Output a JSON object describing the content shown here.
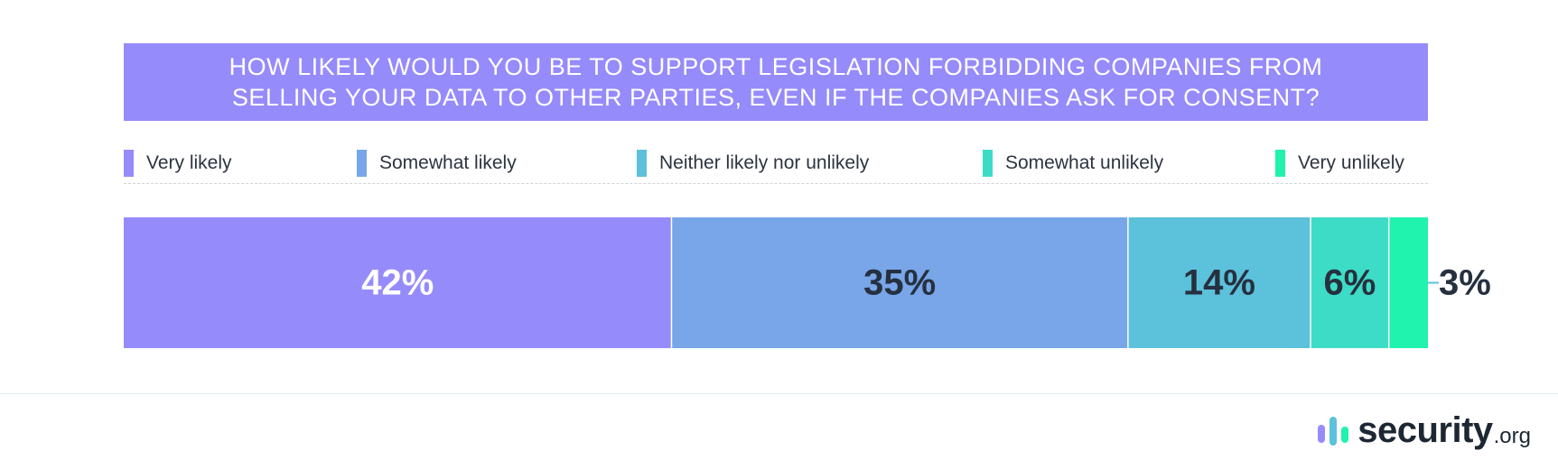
{
  "chart_data": {
    "type": "bar",
    "orientation": "horizontal-stacked",
    "title": "HOW LIKELY WOULD YOU BE TO SUPPORT LEGISLATION FORBIDDING COMPANIES FROM\nSELLING YOUR DATA TO OTHER PARTIES, EVEN IF THE COMPANIES ASK FOR CONSENT?",
    "legend_placement": "top",
    "grid": false,
    "series": [
      {
        "name": "Very likely",
        "value": 42,
        "label": "42%",
        "color": "#968bfb",
        "label_color": "#ffffff"
      },
      {
        "name": "Somewhat likely",
        "value": 35,
        "label": "35%",
        "color": "#78a6e9",
        "label_color": "#26303f"
      },
      {
        "name": "Neither likely nor unlikely",
        "value": 14,
        "label": "14%",
        "color": "#5cc1da",
        "label_color": "#26303f"
      },
      {
        "name": "Somewhat unlikely",
        "value": 6,
        "label": "6%",
        "color": "#3ddcc6",
        "label_color": "#26303f"
      },
      {
        "name": "Very unlikely",
        "value": 3,
        "label": "3%",
        "color": "#1ff3ae",
        "label_color": "#26303f"
      }
    ]
  },
  "brand": {
    "name": "security",
    "tld": ".org",
    "colors": [
      "#968bfb",
      "#5cc1da",
      "#1ff3ae"
    ]
  }
}
